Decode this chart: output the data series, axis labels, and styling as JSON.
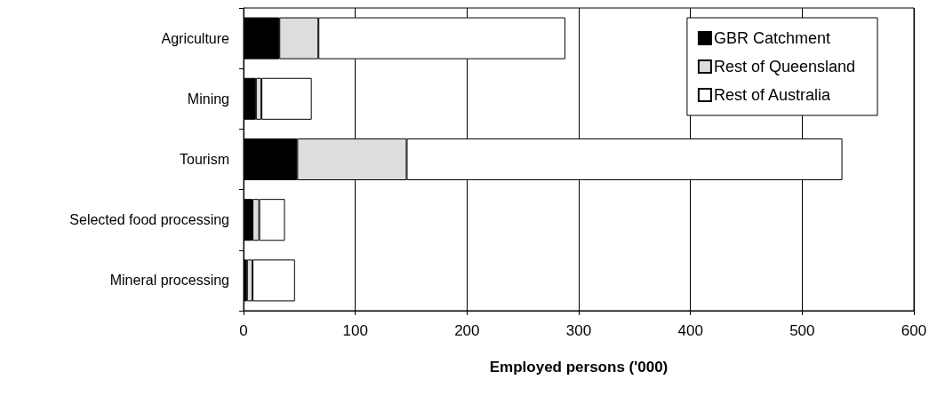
{
  "chart_data": {
    "type": "bar",
    "orientation": "horizontal",
    "stacked": true,
    "xlabel": "Employed persons ('000)",
    "categories": [
      "Agriculture",
      "Mining",
      "Tourism",
      "Selected food processing",
      "Mineral processing"
    ],
    "series": [
      {
        "name": "GBR Catchment",
        "color": "#000000",
        "values": [
          32,
          11,
          48,
          8,
          3
        ]
      },
      {
        "name": "Rest of Queensland",
        "color": "#dddddd",
        "values": [
          35,
          5,
          98,
          6,
          5
        ]
      },
      {
        "name": "Rest of Australia",
        "color": "#ffffff",
        "values": [
          221,
          45,
          390,
          23,
          38
        ]
      }
    ],
    "xlim": [
      0,
      600
    ],
    "xticks": [
      0,
      100,
      200,
      300,
      400,
      500,
      600
    ],
    "grid": "x",
    "legend": "top right"
  }
}
